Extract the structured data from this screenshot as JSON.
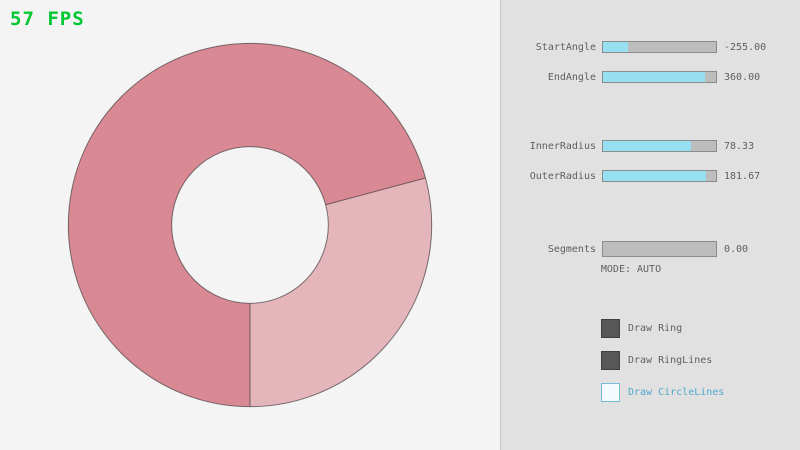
{
  "fps": {
    "label": "57 FPS",
    "color": "#00c832"
  },
  "ring": {
    "colors": {
      "dark": "#d98994",
      "light": "#e5b5bc",
      "outline": "rgba(40,40,40,0.6)",
      "background": "#f4f4f4"
    }
  },
  "panel": {
    "sliders": [
      {
        "label": "StartAngle",
        "value": "-255.00",
        "fill_pct": 21.7
      },
      {
        "label": "EndAngle",
        "value": "360.00",
        "fill_pct": 90.0
      },
      {
        "label": "InnerRadius",
        "value": "78.33",
        "fill_pct": 78.3
      },
      {
        "label": "OuterRadius",
        "value": "181.67",
        "fill_pct": 90.8
      },
      {
        "label": "Segments",
        "value": "0.00",
        "fill_pct": 0
      }
    ],
    "mode_text": "MODE: AUTO",
    "checkboxes": [
      {
        "label": "Draw Ring",
        "checked": true
      },
      {
        "label": "Draw RingLines",
        "checked": true
      },
      {
        "label": "Draw CircleLines",
        "checked": false
      }
    ],
    "accent_fill": "#97e0f2"
  }
}
